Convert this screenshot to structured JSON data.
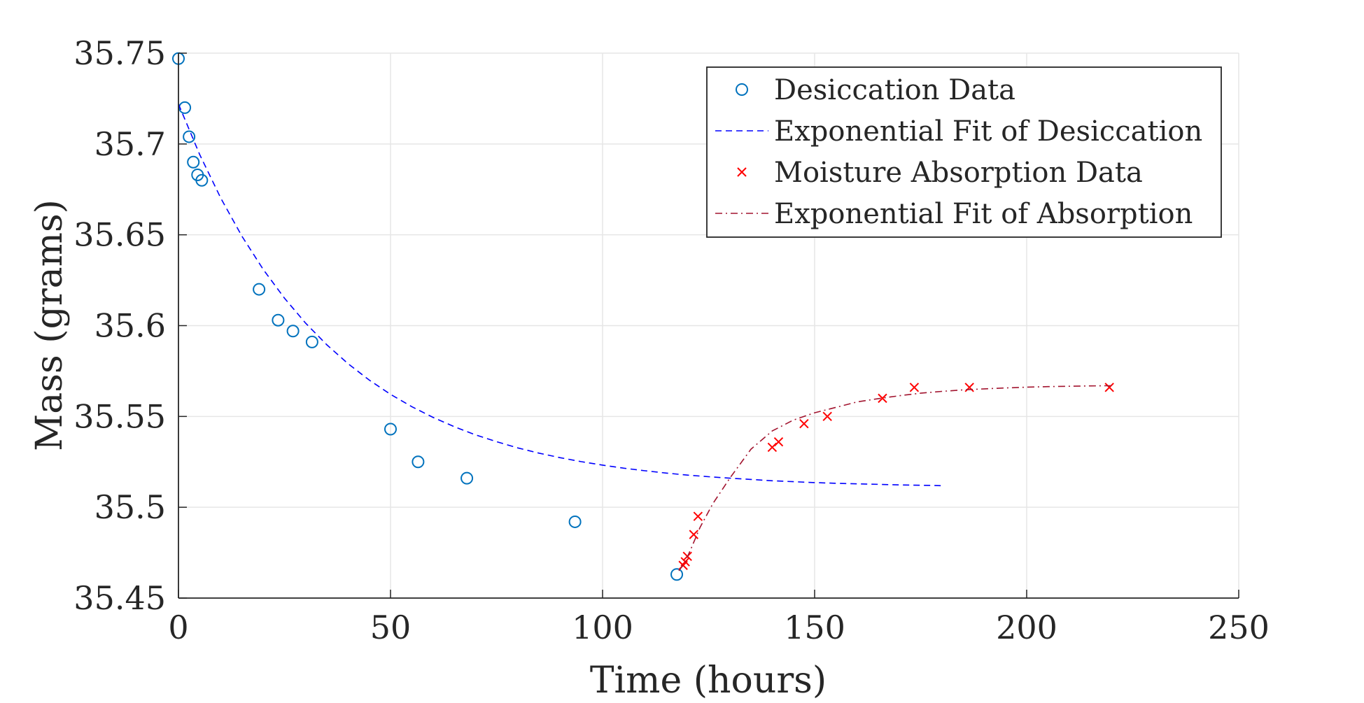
{
  "chart_data": {
    "type": "scatter",
    "xlabel": "Time (hours)",
    "ylabel": "Mass (grams)",
    "xlim": [
      0,
      250
    ],
    "ylim": [
      35.45,
      35.75
    ],
    "x_ticks": [
      "0",
      "50",
      "100",
      "150",
      "200",
      "250"
    ],
    "y_ticks": [
      "35.45",
      "35.5",
      "35.55",
      "35.6",
      "35.65",
      "35.7",
      "35.75"
    ],
    "grid": true,
    "legend_position": "top-right",
    "series": [
      {
        "name": "Desiccation Data",
        "kind": "scatter",
        "marker": "circle",
        "color": "#0072BD",
        "x": [
          0,
          1.5,
          2.5,
          3.5,
          4.5,
          5.5,
          19,
          23.5,
          27,
          31.5,
          50,
          56.5,
          68,
          93.5,
          117.5
        ],
        "y": [
          35.747,
          35.72,
          35.704,
          35.69,
          35.683,
          35.68,
          35.62,
          35.603,
          35.597,
          35.591,
          35.543,
          35.525,
          35.516,
          35.492,
          35.463
        ]
      },
      {
        "name": "Exponential Fit of Desiccation",
        "kind": "line",
        "dash": "dashed",
        "color": "#0000FF",
        "x": [
          0,
          5,
          10,
          15,
          20,
          25,
          30,
          35,
          40,
          45,
          50,
          55,
          60,
          65,
          70,
          75,
          80,
          85,
          90,
          95,
          100,
          105,
          110,
          115,
          120,
          125,
          130,
          135,
          140,
          145,
          150,
          155,
          160,
          165,
          170,
          175,
          180
        ],
        "y": [
          35.722,
          35.6942,
          35.6701,
          35.6491,
          35.6309,
          35.6151,
          35.6013,
          35.5894,
          35.579,
          35.57,
          35.5622,
          35.5554,
          35.5495,
          35.5444,
          35.5399,
          35.5361,
          35.5327,
          35.5298,
          35.5273,
          35.5251,
          35.5232,
          35.5215,
          35.5201,
          35.5188,
          35.5177,
          35.5168,
          35.516,
          35.5153,
          35.5146,
          35.5141,
          35.5136,
          35.5132,
          35.5129,
          35.5126,
          35.5123,
          35.5121,
          35.5119
        ]
      },
      {
        "name": "Moisture Absorption Data",
        "kind": "scatter",
        "marker": "x",
        "color": "#FF0000",
        "x": [
          119,
          119.5,
          120,
          121.5,
          122.5,
          140,
          141.5,
          147.5,
          153,
          166,
          173.5,
          186.5,
          219.5
        ],
        "y": [
          35.468,
          35.47,
          35.473,
          35.485,
          35.495,
          35.533,
          35.536,
          35.546,
          35.55,
          35.56,
          35.566,
          35.566,
          35.566
        ]
      },
      {
        "name": "Exponential Fit of Absorption",
        "kind": "line",
        "dash": "dashdot",
        "color": "#A2142F",
        "x": [
          118,
          119.5,
          121,
          123,
          126,
          130,
          135,
          140,
          145,
          150,
          155,
          160,
          165,
          170,
          175,
          180,
          185,
          190,
          195,
          200,
          205,
          210,
          215,
          220
        ],
        "y": [
          35.465,
          35.47,
          35.478,
          35.489,
          35.502,
          35.516,
          35.532,
          35.542,
          35.548,
          35.552,
          35.555,
          35.558,
          35.5598,
          35.5614,
          35.5628,
          35.5638,
          35.5646,
          35.5652,
          35.5657,
          35.5661,
          35.5664,
          35.5666,
          35.5668,
          35.5669
        ]
      }
    ]
  }
}
